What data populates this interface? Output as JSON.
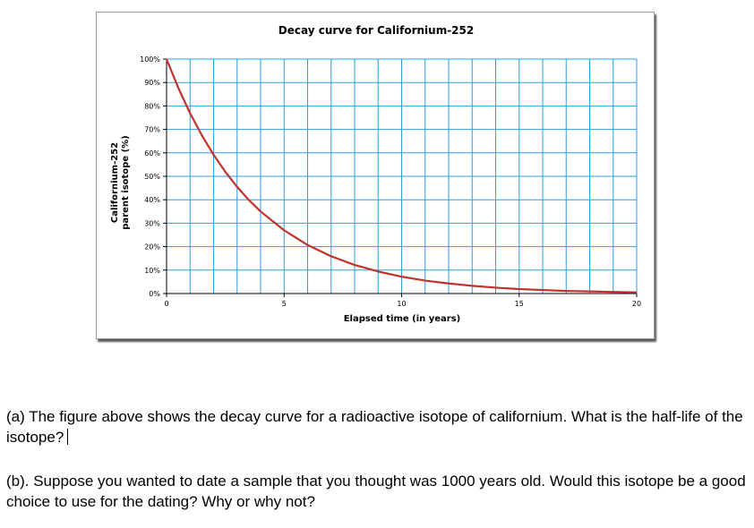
{
  "chart_data": {
    "type": "line",
    "title": "Decay curve for Californium-252",
    "xlabel": "Elapsed time (in years)",
    "ylabel_line1": "Californium-252",
    "ylabel_line2": "parent isotope (%)",
    "xlim": [
      0,
      20
    ],
    "ylim": [
      0,
      100
    ],
    "x_ticks": [
      0,
      5,
      10,
      15,
      20
    ],
    "x_tick_labels": [
      "0",
      "5",
      "10",
      "15",
      "20"
    ],
    "y_ticks": [
      0,
      10,
      20,
      30,
      40,
      50,
      60,
      70,
      80,
      90,
      100
    ],
    "y_tick_labels": [
      "0%",
      "10%",
      "20%",
      "30%",
      "40%",
      "50%",
      "60%",
      "70%",
      "80%",
      "90%",
      "100%"
    ],
    "grid": true,
    "grid_color": "#2a9de0",
    "series": [
      {
        "color": "#c0322b",
        "x": [
          0,
          0.5,
          1,
          1.5,
          2,
          2.5,
          3,
          3.5,
          4,
          5,
          6,
          7,
          8,
          9,
          10,
          11,
          12,
          13,
          14,
          15,
          16,
          17,
          18,
          19,
          20
        ],
        "y": [
          100,
          87.7,
          76.9,
          67.5,
          59.2,
          51.9,
          45.5,
          39.9,
          35.0,
          27.0,
          20.7,
          15.9,
          12.2,
          9.4,
          7.2,
          5.5,
          4.3,
          3.3,
          2.5,
          1.9,
          1.5,
          1.1,
          0.9,
          0.7,
          0.5
        ]
      }
    ]
  },
  "questions": {
    "a": "(a) The figure above shows the decay curve for a radioactive isotope of californium.  What is the half-life of the isotope?",
    "b": "(b). Suppose you wanted to date a sample that you thought was 1000 years old.  Would this isotope be a good choice to use for the dating?  Why or why not?"
  }
}
